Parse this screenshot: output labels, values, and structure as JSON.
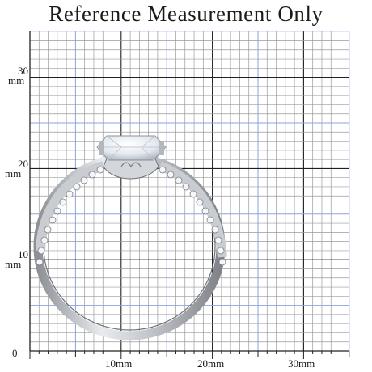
{
  "title": "Reference Measurement Only",
  "origin_label": "0",
  "y_labels": [
    {
      "value": "30",
      "unit": "mm"
    },
    {
      "value": "20",
      "unit": "mm"
    },
    {
      "value": "10",
      "unit": "mm"
    }
  ],
  "x_labels": [
    "10mm",
    "20mm",
    "30mm"
  ],
  "colors": {
    "minor_grid": "#9a9a9a",
    "major_grid": "#202020",
    "half_grid": "#8ea2e0",
    "metal": "#b9bcc0",
    "stone": "#eef1f4"
  },
  "object": "ring-with-center-stone-and-pave-band"
}
